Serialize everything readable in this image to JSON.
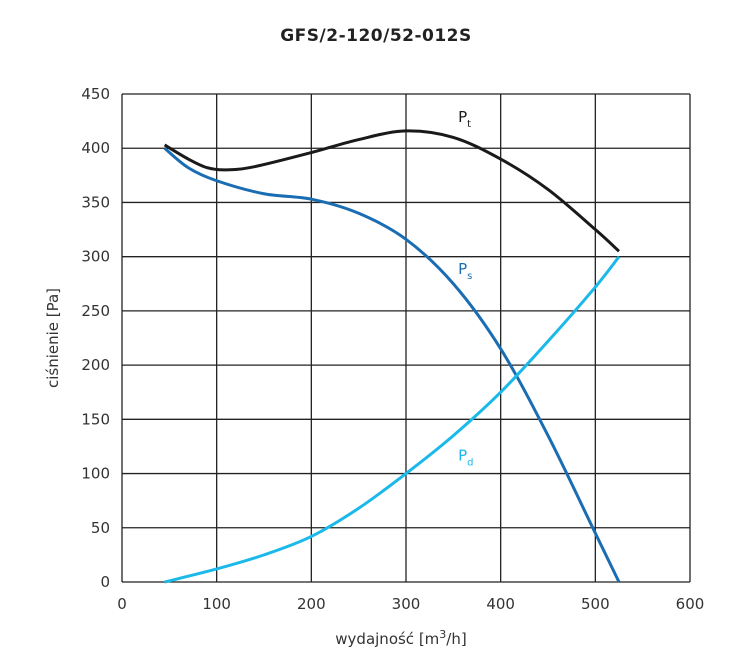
{
  "chart_data": {
    "type": "line",
    "title": "GFS/2-120/52-012S",
    "xlabel": "wydajność [m",
    "xlabel_sup": "3",
    "xlabel_end": "/h]",
    "ylabel": "ciśnienie [Pa]",
    "xlim": [
      0,
      600
    ],
    "ylim": [
      0,
      450
    ],
    "xticks": [
      "0",
      "100",
      "200",
      "300",
      "400",
      "500",
      "600"
    ],
    "yticks": [
      "0",
      "50",
      "100",
      "150",
      "200",
      "250",
      "300",
      "350",
      "400",
      "450"
    ],
    "grid": true,
    "series": [
      {
        "name": "P",
        "sub": "t",
        "color": "#1a1a1a",
        "x": [
          45,
          70,
          90,
          110,
          140,
          200,
          250,
          300,
          350,
          400,
          450,
          500,
          525
        ],
        "y": [
          403,
          390,
          382,
          380,
          383,
          396,
          408,
          416,
          410,
          390,
          362,
          325,
          305
        ]
      },
      {
        "name": "P",
        "sub": "s",
        "color": "#1a6db3",
        "x": [
          45,
          70,
          100,
          150,
          200,
          250,
          300,
          350,
          400,
          450,
          500,
          525
        ],
        "y": [
          400,
          382,
          370,
          358,
          353,
          340,
          316,
          275,
          215,
          135,
          45,
          0
        ]
      },
      {
        "name": "P",
        "sub": "d",
        "color": "#1ab9ea",
        "x": [
          45,
          100,
          150,
          200,
          250,
          300,
          350,
          400,
          450,
          500,
          525
        ],
        "y": [
          0,
          12,
          25,
          42,
          68,
          100,
          135,
          175,
          222,
          272,
          300
        ]
      }
    ]
  }
}
